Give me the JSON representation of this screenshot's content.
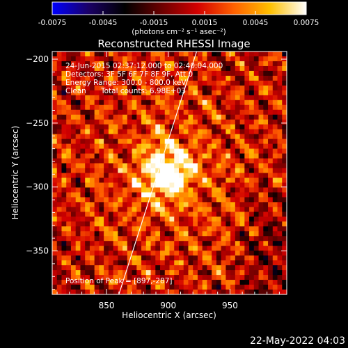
{
  "colorbar": {
    "ticks": [
      -0.0075,
      -0.0045,
      -0.0015,
      0.0015,
      0.0045,
      0.0075
    ],
    "tick_labels": [
      "-0.0075",
      "-0.0045",
      "-0.0015",
      "0.0015",
      "0.0045",
      "0.0075"
    ],
    "label": "(photons cm⁻² s⁻¹ asec⁻²)",
    "range": [
      -0.0075,
      0.0075
    ],
    "stops": [
      "#0000ff",
      "#1a0066",
      "#000000",
      "#6a0000",
      "#d20000",
      "#ff6000",
      "#ffc000",
      "#ffffff"
    ]
  },
  "header": {
    "title": "Reconstructed RHESSI Image",
    "line1": "24-Jun-2015 02:37:12.000 to 02:40:04.000",
    "line2": "Detectors: 3F 5F 6F 7F 8F 9F, Att 0",
    "line3": "Energy Range: 300.0 - 800.0 keV",
    "line4_left": "Clean",
    "line4_right": "Total counts: 6.98E+03"
  },
  "peak_label": "Position of Peak = [897,-287]",
  "footer_timestamp": "22-May-2022 04:03",
  "chart_data": {
    "type": "heatmap",
    "title": "Reconstructed RHESSI Image",
    "xlabel": "Heliocentric X (arcsec)",
    "ylabel": "Heliocentric Y (arcsec)",
    "xlim": [
      806,
      996
    ],
    "ylim": [
      -384,
      -194
    ],
    "xticks": [
      850,
      900,
      950
    ],
    "yticks": [
      -200,
      -250,
      -300,
      -350
    ],
    "peak": [
      897,
      -287
    ],
    "limb": [
      [
        923,
        -194
      ],
      [
        860,
        -384
      ]
    ],
    "colorbar_range": [
      -0.0075,
      0.0075
    ]
  }
}
